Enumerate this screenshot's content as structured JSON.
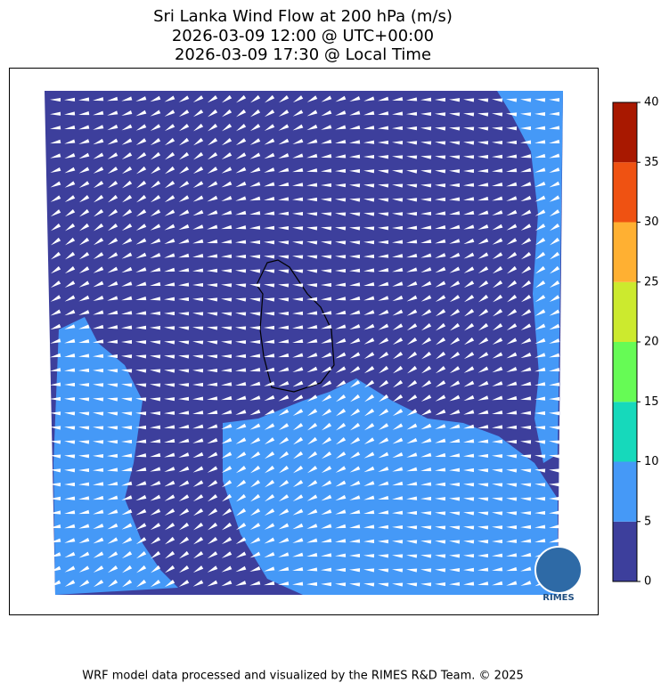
{
  "title": [
    "Sri Lanka Wind Flow at 200 hPa (m/s)",
    "2026-03-09 12:00 @ UTC+00:00",
    "2026-03-09 17:30 @ Local Time"
  ],
  "colorbar": {
    "ticks": [
      0,
      5,
      10,
      15,
      20,
      25,
      30,
      35,
      40
    ],
    "colors": [
      "#3d3f9c",
      "#4599f7",
      "#16d9bb",
      "#66fb55",
      "#ccea2e",
      "#ffb032",
      "#ef5212",
      "#a81800"
    ]
  },
  "logo_text": "RIMES",
  "footer": "WRF model data processed and visualized by the RIMES R&D Team. © 2025"
}
